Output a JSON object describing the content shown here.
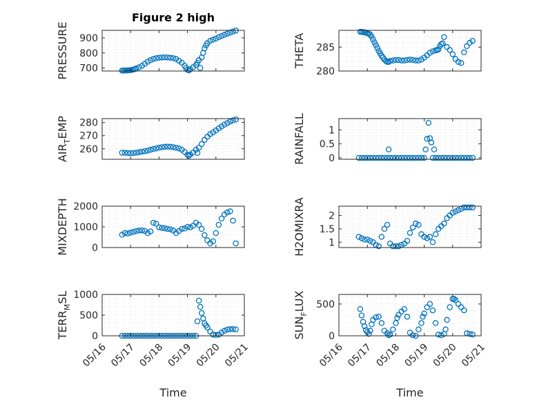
{
  "figure": {
    "title": "Figure 2 high",
    "xlabel": "Time",
    "xticks": [
      "05/16",
      "05/17",
      "05/18",
      "05/19",
      "05/20",
      "05/21"
    ],
    "colors": {
      "marker": "#0072bd",
      "axes": "#262626",
      "grid": "#d9d9d9"
    }
  },
  "chart_data": [
    {
      "id": "pressure",
      "type": "scatter",
      "ylabel": "PRESSURE",
      "sub": "",
      "title": "Figure 2 high",
      "xlim": [
        16,
        21
      ],
      "ylim": [
        680,
        950
      ],
      "yticks": [
        700,
        800,
        900
      ],
      "x": [
        16.7,
        16.75,
        16.8,
        16.85,
        16.9,
        16.95,
        17.0,
        17.05,
        17.1,
        17.15,
        17.2,
        17.3,
        17.4,
        17.5,
        17.6,
        17.7,
        17.8,
        17.9,
        18.0,
        18.1,
        18.2,
        18.3,
        18.4,
        18.5,
        18.6,
        18.7,
        18.8,
        18.9,
        18.95,
        19.0,
        19.05,
        19.1,
        19.2,
        19.3,
        19.35,
        19.4,
        19.45,
        19.5,
        19.55,
        19.6,
        19.65,
        19.7,
        19.8,
        19.9,
        20.0,
        20.1,
        20.2,
        20.3,
        20.4,
        20.5,
        20.6,
        20.7
      ],
      "y": [
        683,
        683,
        684,
        684,
        684,
        685,
        686,
        688,
        690,
        693,
        697,
        705,
        715,
        728,
        742,
        752,
        760,
        765,
        768,
        770,
        771,
        770,
        768,
        765,
        760,
        748,
        735,
        715,
        700,
        688,
        684,
        692,
        705,
        720,
        735,
        752,
        700,
        770,
        800,
        830,
        850,
        865,
        880,
        888,
        895,
        905,
        913,
        920,
        928,
        935,
        942,
        948
      ]
    },
    {
      "id": "theta",
      "type": "scatter",
      "ylabel": "THETA",
      "sub": "",
      "xlim": [
        16,
        21
      ],
      "ylim": [
        280,
        288.5
      ],
      "yticks": [
        280,
        285
      ],
      "x": [
        16.75,
        16.8,
        16.85,
        16.9,
        16.95,
        17.0,
        17.05,
        17.1,
        17.15,
        17.2,
        17.25,
        17.3,
        17.35,
        17.4,
        17.45,
        17.5,
        17.55,
        17.6,
        17.65,
        17.7,
        17.75,
        17.8,
        17.9,
        18.0,
        18.1,
        18.2,
        18.3,
        18.4,
        18.5,
        18.6,
        18.7,
        18.8,
        18.9,
        19.0,
        19.1,
        19.2,
        19.3,
        19.4,
        19.45,
        19.5,
        19.55,
        19.6,
        19.65,
        19.7,
        19.8,
        19.9,
        20.0,
        20.1,
        20.2,
        20.3,
        20.4,
        20.5,
        20.6,
        20.7
      ],
      "y": [
        288.2,
        288.2,
        288.1,
        288.1,
        288.0,
        287.9,
        287.8,
        287.6,
        287.2,
        286.6,
        286.0,
        285.4,
        284.8,
        284.2,
        283.7,
        283.2,
        282.8,
        282.4,
        282.1,
        281.9,
        281.9,
        282.1,
        282.2,
        282.3,
        282.3,
        282.2,
        282.2,
        282.3,
        282.4,
        282.3,
        282.2,
        282.2,
        282.4,
        282.8,
        283.3,
        283.8,
        284.1,
        284.3,
        284.4,
        284.5,
        285.2,
        285.6,
        285.8,
        287.1,
        285.0,
        284.4,
        283.5,
        282.5,
        281.9,
        281.7,
        283.9,
        285.2,
        285.9,
        286.3
      ]
    },
    {
      "id": "air_temp",
      "type": "scatter",
      "ylabel": "AIR",
      "sub": "T",
      "ylabel2": "EMP",
      "xlim": [
        16,
        21
      ],
      "ylim": [
        252,
        283
      ],
      "yticks": [
        260,
        270,
        280
      ],
      "x": [
        16.7,
        16.8,
        16.9,
        17.0,
        17.1,
        17.2,
        17.3,
        17.4,
        17.5,
        17.6,
        17.7,
        17.8,
        17.9,
        18.0,
        18.1,
        18.2,
        18.3,
        18.4,
        18.5,
        18.6,
        18.7,
        18.8,
        18.9,
        19.0,
        19.05,
        19.1,
        19.2,
        19.3,
        19.35,
        19.4,
        19.5,
        19.6,
        19.7,
        19.8,
        19.9,
        20.0,
        20.1,
        20.2,
        20.3,
        20.4,
        20.5,
        20.6,
        20.7
      ],
      "y": [
        257,
        257,
        256.7,
        256.6,
        256.8,
        257,
        257.4,
        257.8,
        258.2,
        258.6,
        259.2,
        259.8,
        260.3,
        260.8,
        261.2,
        261.5,
        261.6,
        261.5,
        261.2,
        260.8,
        260.3,
        259.3,
        257.6,
        255.4,
        254.6,
        255.6,
        257.2,
        259.3,
        256.8,
        260.8,
        263.6,
        266.8,
        269.2,
        271.2,
        272.5,
        274,
        275.6,
        277,
        278.4,
        279.6,
        280.8,
        281.6,
        282.4
      ]
    },
    {
      "id": "rainfall",
      "type": "scatter",
      "ylabel": "RAINFALL",
      "sub": "",
      "xlim": [
        16,
        21
      ],
      "ylim": [
        -0.05,
        1.4
      ],
      "yticks": [
        0,
        0.5,
        1
      ],
      "x": [
        16.7,
        16.8,
        16.9,
        17.0,
        17.1,
        17.2,
        17.3,
        17.4,
        17.5,
        17.6,
        17.7,
        17.75,
        17.8,
        17.9,
        18.0,
        18.1,
        18.2,
        18.3,
        18.4,
        18.5,
        18.6,
        18.7,
        18.8,
        18.9,
        19.0,
        19.05,
        19.1,
        19.15,
        19.2,
        19.25,
        19.3,
        19.35,
        19.4,
        19.5,
        19.6,
        19.7,
        19.8,
        19.9,
        20.0,
        20.1,
        20.2,
        20.3,
        20.4,
        20.5,
        20.6,
        20.7
      ],
      "y": [
        0,
        0,
        0,
        0,
        0,
        0,
        0,
        0,
        0,
        0,
        0,
        0.3,
        0,
        0,
        0,
        0,
        0,
        0,
        0,
        0,
        0,
        0,
        0,
        0,
        0,
        0.3,
        0.68,
        1.25,
        0.7,
        0.55,
        0,
        0.3,
        0,
        0,
        0,
        0,
        0,
        0,
        0,
        0,
        0,
        0,
        0,
        0,
        0,
        0
      ]
    },
    {
      "id": "mixdepth",
      "type": "scatter",
      "ylabel": "MIXDEPTH",
      "sub": "",
      "xlim": [
        16,
        21
      ],
      "ylim": [
        0,
        2000
      ],
      "yticks": [
        0,
        1000,
        2000
      ],
      "x": [
        16.7,
        16.8,
        16.9,
        17.0,
        17.1,
        17.2,
        17.3,
        17.4,
        17.5,
        17.6,
        17.7,
        17.8,
        17.9,
        18.0,
        18.1,
        18.2,
        18.3,
        18.4,
        18.5,
        18.6,
        18.7,
        18.8,
        18.9,
        19.0,
        19.1,
        19.2,
        19.3,
        19.4,
        19.5,
        19.6,
        19.7,
        19.8,
        19.9,
        20.0,
        20.1,
        20.2,
        20.3,
        20.4,
        20.5,
        20.6,
        20.7
      ],
      "y": [
        620,
        700,
        680,
        720,
        760,
        800,
        820,
        830,
        800,
        700,
        780,
        1200,
        1150,
        980,
        950,
        930,
        900,
        880,
        820,
        700,
        800,
        900,
        920,
        1000,
        980,
        1050,
        1200,
        1100,
        900,
        600,
        350,
        200,
        300,
        700,
        1100,
        1400,
        1600,
        1700,
        1750,
        1300,
        200
      ]
    },
    {
      "id": "h2omixra",
      "type": "scatter",
      "ylabel": "H2OMIXRA",
      "sub": "",
      "xlim": [
        16,
        21
      ],
      "ylim": [
        0.8,
        2.35
      ],
      "yticks": [
        1,
        1.5,
        2
      ],
      "x": [
        16.7,
        16.8,
        16.9,
        17.0,
        17.1,
        17.2,
        17.3,
        17.4,
        17.5,
        17.6,
        17.7,
        17.8,
        17.9,
        18.0,
        18.1,
        18.2,
        18.3,
        18.4,
        18.5,
        18.6,
        18.7,
        18.8,
        18.9,
        19.0,
        19.1,
        19.2,
        19.3,
        19.4,
        19.5,
        19.6,
        19.7,
        19.8,
        19.9,
        20.0,
        20.1,
        20.2,
        20.3,
        20.4,
        20.5,
        20.6,
        20.7
      ],
      "y": [
        1.2,
        1.15,
        1.1,
        1.1,
        1.05,
        1.0,
        0.9,
        0.85,
        1.2,
        1.5,
        1.65,
        0.95,
        0.85,
        0.85,
        0.85,
        0.9,
        0.95,
        1.05,
        1.35,
        1.55,
        1.7,
        1.65,
        1.3,
        1.2,
        1.15,
        1.2,
        1.0,
        1.3,
        1.5,
        1.6,
        1.7,
        1.9,
        2.0,
        2.1,
        2.15,
        2.2,
        2.25,
        2.3,
        2.3,
        2.3,
        2.3
      ]
    },
    {
      "id": "terr_msl",
      "type": "scatter",
      "ylabel": "TERR",
      "sub": "M",
      "ylabel2": "SL",
      "xlim": [
        16,
        21
      ],
      "ylim": [
        0,
        1000
      ],
      "yticks": [
        0,
        500,
        1000
      ],
      "x": [
        16.7,
        16.8,
        16.9,
        17.0,
        17.1,
        17.2,
        17.3,
        17.4,
        17.5,
        17.6,
        17.7,
        17.8,
        17.9,
        18.0,
        18.1,
        18.2,
        18.3,
        18.4,
        18.5,
        18.6,
        18.7,
        18.8,
        18.9,
        19.0,
        19.1,
        19.2,
        19.3,
        19.35,
        19.4,
        19.45,
        19.5,
        19.55,
        19.6,
        19.65,
        19.7,
        19.8,
        19.9,
        20.0,
        20.1,
        20.2,
        20.3,
        20.4,
        20.5,
        20.6,
        20.7
      ],
      "y": [
        0,
        0,
        0,
        0,
        0,
        0,
        0,
        0,
        0,
        0,
        0,
        0,
        0,
        0,
        0,
        0,
        0,
        0,
        0,
        0,
        0,
        0,
        0,
        0,
        0,
        0,
        0,
        350,
        850,
        700,
        550,
        420,
        300,
        250,
        200,
        100,
        30,
        20,
        30,
        80,
        120,
        150,
        160,
        160,
        155
      ]
    },
    {
      "id": "sun_flux",
      "type": "scatter",
      "ylabel": "SUN",
      "sub": "F",
      "ylabel2": "LUX",
      "xlim": [
        16,
        21
      ],
      "ylim": [
        0,
        650
      ],
      "yticks": [
        0,
        500
      ],
      "x": [
        16.75,
        16.8,
        16.85,
        16.9,
        16.95,
        17.0,
        17.05,
        17.1,
        17.15,
        17.2,
        17.3,
        17.4,
        17.5,
        17.6,
        17.7,
        17.75,
        17.8,
        17.9,
        18.0,
        18.05,
        18.1,
        18.2,
        18.3,
        18.4,
        18.5,
        18.6,
        18.7,
        18.8,
        18.9,
        18.95,
        19.0,
        19.1,
        19.2,
        19.3,
        19.4,
        19.5,
        19.6,
        19.7,
        19.75,
        19.8,
        19.9,
        20.0,
        20.05,
        20.1,
        20.2,
        20.3,
        20.4,
        20.5,
        20.6,
        20.7
      ],
      "y": [
        420,
        320,
        220,
        150,
        90,
        60,
        30,
        80,
        180,
        250,
        290,
        300,
        200,
        80,
        40,
        10,
        20,
        100,
        200,
        280,
        330,
        380,
        420,
        300,
        50,
        10,
        0,
        100,
        200,
        300,
        350,
        450,
        500,
        400,
        200,
        20,
        10,
        30,
        100,
        250,
        450,
        580,
        580,
        560,
        500,
        450,
        400,
        40,
        30,
        20
      ]
    }
  ]
}
